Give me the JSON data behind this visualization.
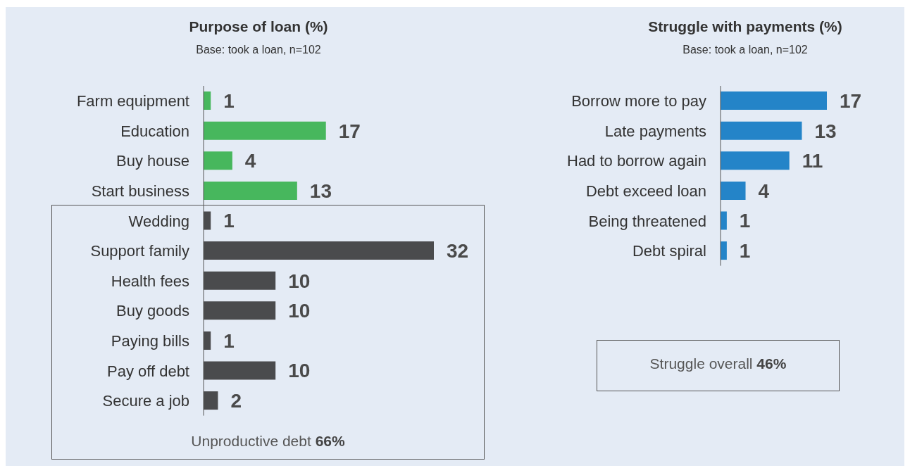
{
  "chart_data": [
    {
      "type": "bar",
      "orientation": "horizontal",
      "title": "Purpose of loan (%)",
      "subtitle": "Base: took a loan, n=102",
      "categories": [
        "Farm equipment",
        "Education",
        "Buy house",
        "Start business",
        "Wedding",
        "Support family",
        "Health fees",
        "Buy goods",
        "Paying bills",
        "Pay off debt",
        "Secure a job"
      ],
      "values": [
        1,
        17,
        4,
        13,
        1,
        32,
        10,
        10,
        1,
        10,
        2
      ],
      "colors": [
        "#47b75d",
        "#47b75d",
        "#47b75d",
        "#47b75d",
        "#4a4b4d",
        "#4a4b4d",
        "#4a4b4d",
        "#4a4b4d",
        "#4a4b4d",
        "#4a4b4d",
        "#4a4b4d"
      ],
      "data_labels": true,
      "annotations": [
        "Unproductive debt 66%"
      ]
    },
    {
      "type": "bar",
      "orientation": "horizontal",
      "title": "Struggle with payments (%)",
      "subtitle": "Base: took a loan, n=102",
      "categories": [
        "Borrow more to pay",
        "Late payments",
        "Had to borrow again",
        "Debt exceed loan",
        "Being threatened",
        "Debt spiral"
      ],
      "values": [
        17,
        13,
        11,
        4,
        1,
        1
      ],
      "colors": [
        "#2484c8",
        "#2484c8",
        "#2484c8",
        "#2484c8",
        "#2484c8",
        "#2484c8"
      ],
      "data_labels": true,
      "annotations": [
        "Struggle overall 46%"
      ]
    }
  ]
}
